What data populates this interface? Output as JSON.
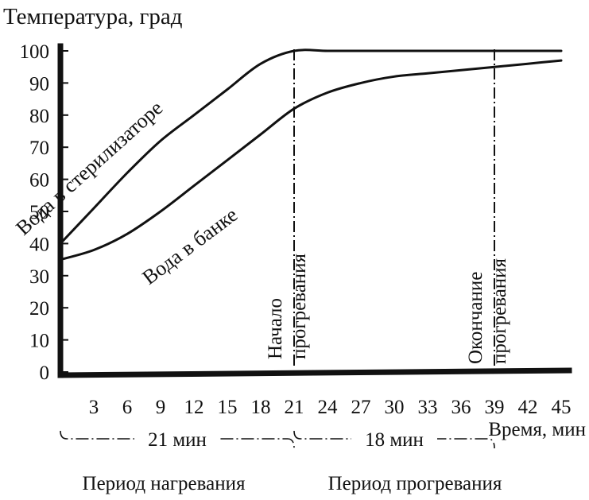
{
  "chart_data": {
    "type": "line",
    "ylabel": "Температура, град",
    "xlabel": "Время, мин",
    "xlim": [
      0,
      45
    ],
    "ylim": [
      0,
      100
    ],
    "grid": false,
    "legend": "none",
    "y_ticks": [
      0,
      10,
      20,
      30,
      40,
      50,
      60,
      70,
      80,
      90,
      100
    ],
    "x_ticks": [
      3,
      6,
      9,
      12,
      15,
      18,
      21,
      24,
      27,
      30,
      33,
      36,
      39,
      42,
      45
    ],
    "series": [
      {
        "name": "Вода в стерилизаторе",
        "x": [
          0,
          3,
          6,
          9,
          12,
          15,
          18,
          21,
          24,
          27,
          30,
          33,
          36,
          39,
          42,
          45
        ],
        "y": [
          40,
          51,
          62,
          72,
          80,
          88,
          96,
          100,
          100,
          100,
          100,
          100,
          100,
          100,
          100,
          100
        ]
      },
      {
        "name": "Вода в банке",
        "x": [
          0,
          3,
          6,
          9,
          12,
          15,
          18,
          21,
          24,
          27,
          30,
          33,
          36,
          39,
          42,
          45
        ],
        "y": [
          35,
          38,
          43,
          50,
          58,
          66,
          74,
          82,
          87,
          90,
          92,
          93,
          94,
          95,
          96,
          97
        ]
      }
    ],
    "markers": [
      {
        "x": 21,
        "label_lines": [
          "Начало",
          "прогревания"
        ]
      },
      {
        "x": 39,
        "label_lines": [
          "Окончание",
          "прогревания"
        ]
      }
    ],
    "intervals": [
      {
        "from": 0,
        "to": 21,
        "duration_label": "21 мин",
        "label": "Период нагревания"
      },
      {
        "from": 21,
        "to": 39,
        "duration_label": "18 мин",
        "label": "Период прогревания"
      }
    ]
  },
  "colors": {
    "ink": "#111111",
    "background": "#ffffff"
  }
}
